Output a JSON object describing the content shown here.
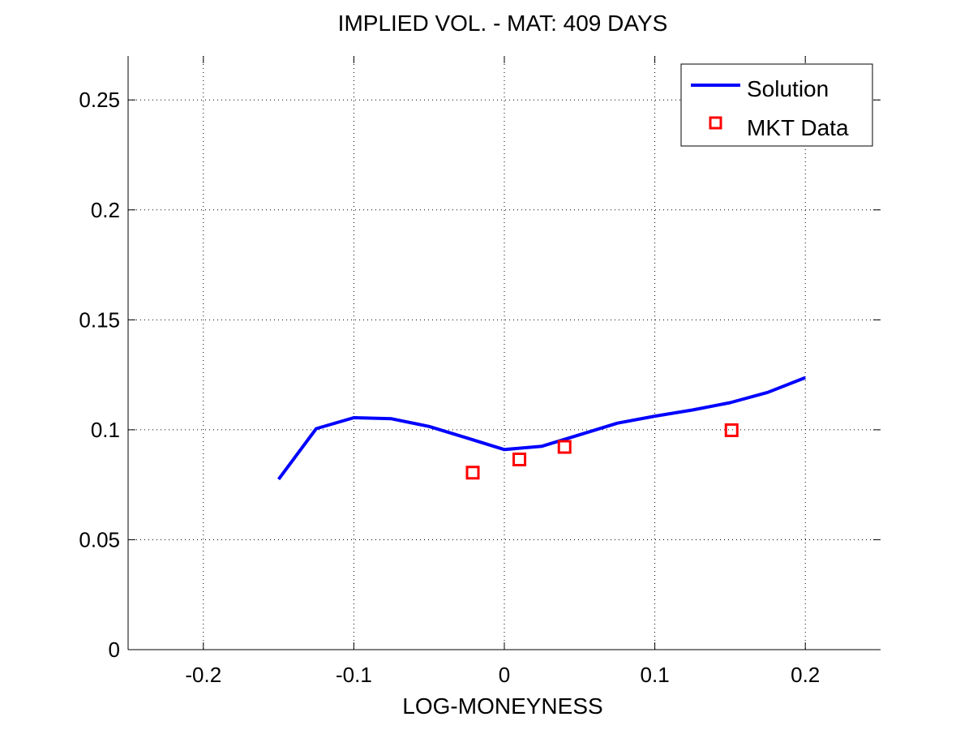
{
  "chart_data": {
    "type": "line",
    "title": "IMPLIED VOL. - MAT: 409 DAYS",
    "xlabel": "LOG-MONEYNESS",
    "ylabel": "",
    "xlim": [
      -0.25,
      0.25
    ],
    "ylim": [
      0,
      0.27
    ],
    "grid": true,
    "legend_position": "top-right",
    "x_ticks": [
      -0.2,
      -0.1,
      0,
      0.1,
      0.2
    ],
    "x_tick_labels": [
      "-0.2",
      "-0.1",
      "0",
      "0.1",
      "0.2"
    ],
    "y_ticks": [
      0,
      0.05,
      0.1,
      0.15,
      0.2,
      0.25
    ],
    "y_tick_labels": [
      "0",
      "0.05",
      "0.1",
      "0.15",
      "0.2",
      "0.25"
    ],
    "series": [
      {
        "name": "Solution",
        "style": "line",
        "color": "#0000ff",
        "x": [
          -0.15,
          -0.125,
          -0.1,
          -0.075,
          -0.05,
          -0.025,
          0,
          0.025,
          0.05,
          0.075,
          0.1,
          0.125,
          0.15,
          0.175,
          0.2
        ],
        "y": [
          0.0775,
          0.1005,
          0.1055,
          0.105,
          0.1015,
          0.0963,
          0.091,
          0.0925,
          0.0977,
          0.103,
          0.1062,
          0.109,
          0.1123,
          0.117,
          0.1237
        ]
      },
      {
        "name": "MKT Data",
        "style": "marker",
        "marker": "square",
        "color": "#ff0000",
        "x": [
          -0.021,
          0.01,
          0.04,
          0.151
        ],
        "y": [
          0.0805,
          0.0865,
          0.0922,
          0.0998
        ]
      }
    ]
  }
}
